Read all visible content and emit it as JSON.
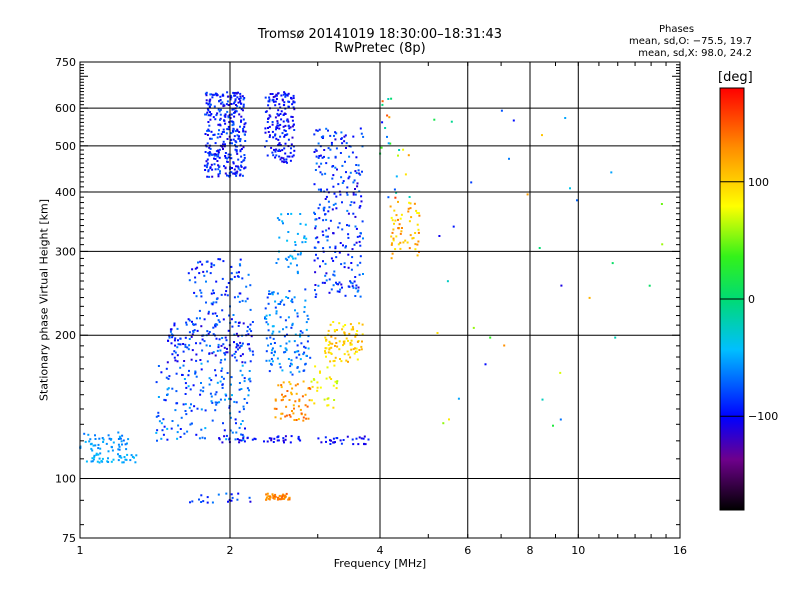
{
  "title_line1": "Tromsø 20141019 18:30:00–18:31:43",
  "title_line2": "RwPretec (8p)",
  "stats": {
    "header": "Phases",
    "line1": "mean, sd,O: −75.5, 19.7",
    "line2": "mean, sd,X:  98.0, 24.2"
  },
  "colorbar": {
    "unit_label": "[deg]",
    "range": [
      -180,
      180
    ],
    "ticks": [
      {
        "value": 100,
        "label": "100"
      },
      {
        "value": 0,
        "label": "0"
      },
      {
        "value": -100,
        "label": "−100"
      }
    ]
  },
  "chart_data": {
    "type": "scatter",
    "title": "Tromsø 20141019 18:30:00–18:31:43 RwPretec (8p)",
    "xlabel": "Frequency [MHz]",
    "ylabel": "Stationary phase Virtual Height [km]",
    "xscale": "log",
    "yscale": "log",
    "xlim": [
      1,
      16
    ],
    "ylim": [
      75,
      750
    ],
    "xticks": [
      {
        "value": 1,
        "label": "1"
      },
      {
        "value": 2,
        "label": "2"
      },
      {
        "value": 4,
        "label": "4"
      },
      {
        "value": 6,
        "label": "6"
      },
      {
        "value": 8,
        "label": "8"
      },
      {
        "value": 10,
        "label": "10"
      },
      {
        "value": 16,
        "label": "16"
      }
    ],
    "yticks": [
      {
        "value": 75,
        "label": "75"
      },
      {
        "value": 100,
        "label": "100"
      },
      {
        "value": 200,
        "label": "200"
      },
      {
        "value": 300,
        "label": "300"
      },
      {
        "value": 400,
        "label": "400"
      },
      {
        "value": 500,
        "label": "500"
      },
      {
        "value": 600,
        "label": "600"
      },
      {
        "value": 750,
        "label": "750"
      }
    ],
    "grid_x": [
      2,
      4,
      6,
      8,
      10
    ],
    "grid_y": [
      100,
      200,
      300,
      400,
      500,
      600
    ],
    "color_dimension": "phase [deg]",
    "clusters": [
      {
        "f": [
          1.0,
          1.25
        ],
        "h": [
          113,
          125
        ],
        "phase": [
          -70,
          -45
        ],
        "n": 50
      },
      {
        "f": [
          1.0,
          1.3
        ],
        "h": [
          108,
          113
        ],
        "phase": [
          -60,
          -40
        ],
        "n": 40
      },
      {
        "f": [
          1.42,
          2.2
        ],
        "h": [
          120,
          175
        ],
        "phase": [
          -100,
          -45
        ],
        "n": 170
      },
      {
        "f": [
          1.5,
          2.25
        ],
        "h": [
          175,
          215
        ],
        "phase": [
          -115,
          -60
        ],
        "n": 160
      },
      {
        "f": [
          1.65,
          2.2
        ],
        "h": [
          215,
          290
        ],
        "phase": [
          -110,
          -60
        ],
        "n": 90
      },
      {
        "f": [
          1.78,
          2.15
        ],
        "h": [
          430,
          650
        ],
        "phase": [
          -115,
          -70
        ],
        "n": 330
      },
      {
        "f": [
          2.35,
          2.7
        ],
        "h": [
          460,
          650
        ],
        "phase": [
          -115,
          -80
        ],
        "n": 170
      },
      {
        "f": [
          2.35,
          2.9
        ],
        "h": [
          165,
          250
        ],
        "phase": [
          -90,
          -45
        ],
        "n": 130
      },
      {
        "f": [
          2.45,
          2.85
        ],
        "h": [
          270,
          360
        ],
        "phase": [
          -65,
          -40
        ],
        "n": 40
      },
      {
        "f": [
          2.45,
          2.9
        ],
        "h": [
          132,
          160
        ],
        "phase": [
          100,
          150
        ],
        "n": 60
      },
      {
        "f": [
          2.35,
          2.65
        ],
        "h": [
          90,
          93
        ],
        "phase": [
          120,
          150
        ],
        "n": 45
      },
      {
        "f": [
          1.65,
          2.2
        ],
        "h": [
          89,
          93
        ],
        "phase": [
          -110,
          -60
        ],
        "n": 20
      },
      {
        "f": [
          1.9,
          2.8
        ],
        "h": [
          119,
          123
        ],
        "phase": [
          -115,
          -90
        ],
        "n": 40
      },
      {
        "f": [
          3.0,
          3.8
        ],
        "h": [
          118,
          123
        ],
        "phase": [
          -115,
          -85
        ],
        "n": 30
      },
      {
        "f": [
          2.95,
          3.7
        ],
        "h": [
          240,
          550
        ],
        "phase": [
          -115,
          -60
        ],
        "n": 260
      },
      {
        "f": [
          3.1,
          3.7
        ],
        "h": [
          175,
          215
        ],
        "phase": [
          80,
          120
        ],
        "n": 90
      },
      {
        "f": [
          2.9,
          3.3
        ],
        "h": [
          140,
          175
        ],
        "phase": [
          60,
          100
        ],
        "n": 30
      },
      {
        "f": [
          4.2,
          4.8
        ],
        "h": [
          290,
          380
        ],
        "phase": [
          80,
          140
        ],
        "n": 60
      },
      {
        "f": [
          4.0,
          4.6
        ],
        "h": [
          380,
          640
        ],
        "phase": [
          -110,
          160
        ],
        "n": 25
      },
      {
        "f": [
          5.0,
          15.0
        ],
        "h": [
          110,
          610
        ],
        "phase": [
          -110,
          130
        ],
        "n": 35
      }
    ]
  }
}
